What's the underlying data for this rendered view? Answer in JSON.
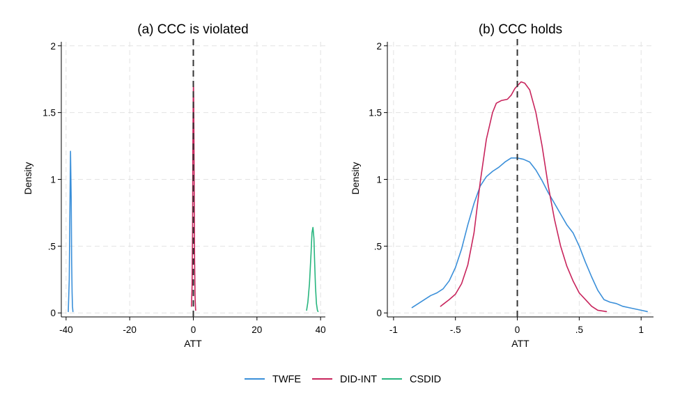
{
  "colors": {
    "twfe": "#3a8fd9",
    "did_int": "#c8245c",
    "csdid": "#27b57e",
    "grid": "#e2e2e2",
    "axis": "#000000",
    "ref_line": "#333333"
  },
  "legend": [
    {
      "key": "twfe",
      "label": "TWFE"
    },
    {
      "key": "did_int",
      "label": "DID-INT"
    },
    {
      "key": "csdid",
      "label": "CSDID"
    }
  ],
  "chart_data": [
    {
      "type": "line",
      "id": "a",
      "title": "(a) CCC is violated",
      "xlabel": "ATT",
      "ylabel": "Density",
      "xlim": [
        -41.5,
        41.5
      ],
      "ylim": [
        -0.03,
        2.03
      ],
      "xticks": [
        -40,
        -20,
        0,
        20,
        40
      ],
      "xtick_labels": [
        "-40",
        "-20",
        "0",
        "20",
        "40"
      ],
      "yticks": [
        0,
        0.5,
        1,
        1.5,
        2
      ],
      "ytick_labels": [
        "0",
        ".5",
        "1",
        "1.5",
        "2"
      ],
      "vline": 0,
      "grid": true,
      "series": [
        {
          "name": "TWFE",
          "key": "twfe",
          "x": [
            -39.3,
            -39.0,
            -38.8,
            -38.6,
            -38.4,
            -38.25,
            -38.1,
            -38.0,
            -37.85
          ],
          "y": [
            0.01,
            0.25,
            0.75,
            1.21,
            0.85,
            0.4,
            0.15,
            0.05,
            0.01
          ]
        },
        {
          "name": "DID-INT",
          "key": "did_int",
          "x": [
            -0.6,
            -0.4,
            -0.25,
            -0.15,
            -0.05,
            0.05,
            0.12,
            0.2,
            0.3,
            0.4,
            0.55,
            0.7,
            0.75
          ],
          "y": [
            0.05,
            0.2,
            0.6,
            1.2,
            1.6,
            1.73,
            1.6,
            1.3,
            0.8,
            0.4,
            0.12,
            0.03,
            0.02
          ]
        },
        {
          "name": "CSDID",
          "key": "csdid",
          "x": [
            35.6,
            36.0,
            36.5,
            37.0,
            37.3,
            37.6,
            37.9,
            38.1,
            38.4,
            38.7,
            39.0,
            39.2
          ],
          "y": [
            0.02,
            0.08,
            0.22,
            0.45,
            0.6,
            0.64,
            0.56,
            0.4,
            0.2,
            0.07,
            0.02,
            0.01
          ]
        }
      ]
    },
    {
      "type": "line",
      "id": "b",
      "title": "(b) CCC holds",
      "xlabel": "ATT",
      "ylabel": "Density",
      "xlim": [
        -1.05,
        1.1
      ],
      "ylim": [
        -0.03,
        2.03
      ],
      "xticks": [
        -1,
        -0.5,
        0,
        0.5,
        1
      ],
      "xtick_labels": [
        "-1",
        "-.5",
        "0",
        ".5",
        "1"
      ],
      "yticks": [
        0,
        0.5,
        1,
        1.5,
        2
      ],
      "ytick_labels": [
        "0",
        ".5",
        "1",
        "1.5",
        "2"
      ],
      "vline": 0,
      "grid": true,
      "series": [
        {
          "name": "TWFE",
          "key": "twfe",
          "x": [
            -0.85,
            -0.8,
            -0.75,
            -0.7,
            -0.65,
            -0.6,
            -0.55,
            -0.5,
            -0.45,
            -0.4,
            -0.35,
            -0.3,
            -0.25,
            -0.2,
            -0.15,
            -0.1,
            -0.05,
            0.0,
            0.05,
            0.1,
            0.15,
            0.2,
            0.25,
            0.3,
            0.35,
            0.4,
            0.45,
            0.5,
            0.55,
            0.6,
            0.65,
            0.7,
            0.75,
            0.8,
            0.85,
            0.9,
            0.95,
            1.0,
            1.05
          ],
          "y": [
            0.04,
            0.07,
            0.1,
            0.13,
            0.15,
            0.18,
            0.24,
            0.34,
            0.48,
            0.66,
            0.82,
            0.95,
            1.02,
            1.06,
            1.09,
            1.13,
            1.16,
            1.16,
            1.15,
            1.13,
            1.07,
            0.99,
            0.9,
            0.82,
            0.74,
            0.66,
            0.6,
            0.5,
            0.38,
            0.27,
            0.17,
            0.1,
            0.08,
            0.07,
            0.05,
            0.04,
            0.03,
            0.02,
            0.01
          ]
        },
        {
          "name": "DID-INT",
          "key": "did_int",
          "x": [
            -0.62,
            -0.55,
            -0.5,
            -0.45,
            -0.4,
            -0.35,
            -0.3,
            -0.25,
            -0.2,
            -0.17,
            -0.13,
            -0.08,
            -0.05,
            -0.02,
            0.0,
            0.03,
            0.06,
            0.1,
            0.15,
            0.2,
            0.25,
            0.3,
            0.35,
            0.4,
            0.45,
            0.5,
            0.55,
            0.6,
            0.65,
            0.72
          ],
          "y": [
            0.05,
            0.1,
            0.14,
            0.22,
            0.36,
            0.6,
            0.98,
            1.3,
            1.5,
            1.57,
            1.59,
            1.6,
            1.63,
            1.68,
            1.7,
            1.73,
            1.72,
            1.67,
            1.5,
            1.25,
            0.95,
            0.7,
            0.5,
            0.35,
            0.24,
            0.15,
            0.1,
            0.05,
            0.02,
            0.01
          ]
        }
      ]
    }
  ]
}
